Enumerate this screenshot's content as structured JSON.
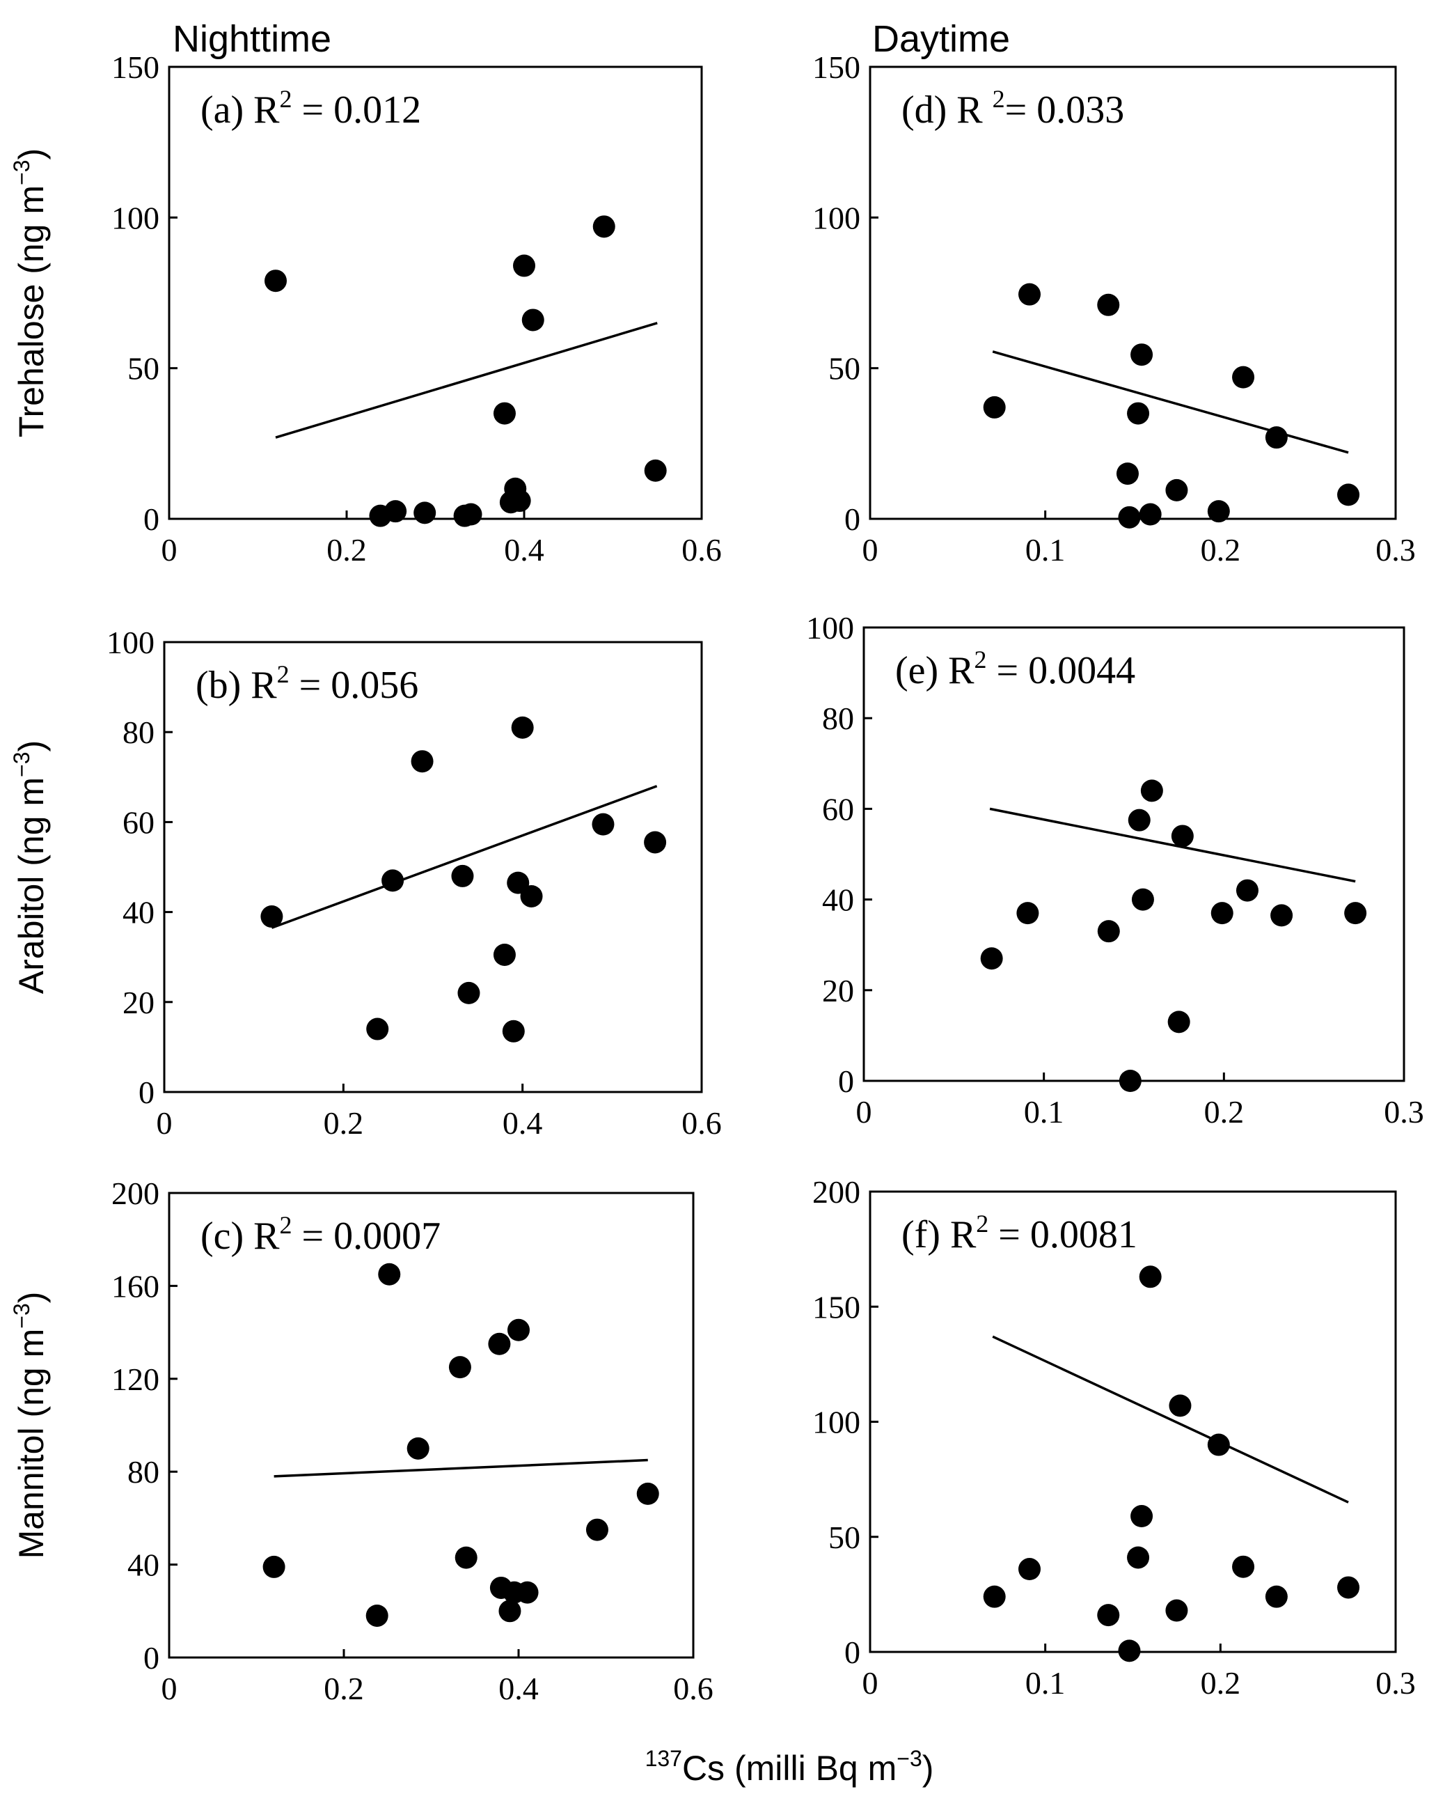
{
  "column_titles": {
    "left": "Nighttime",
    "right": "Daytime"
  },
  "shared_xlabel": {
    "sup": "137",
    "main": "Cs (milli  Bq m",
    "exp": "−3",
    "close": ")"
  },
  "chart_data": [
    {
      "id": "a",
      "type": "scatter",
      "column": "Nighttime",
      "panel_label": "(a)",
      "annotation_pre": "(a)  R",
      "annotation_exp": "2",
      "annotation_post": " = 0.012",
      "ylabel": {
        "main": "Trehalose  (ng m",
        "exp": "−3",
        "close": ")"
      },
      "xlim": [
        0,
        0.6
      ],
      "xticks": [
        0,
        0.2,
        0.4,
        0.6
      ],
      "xtick_labels": [
        "0",
        "0.2",
        "0.4",
        "0.6"
      ],
      "ylim": [
        0,
        150
      ],
      "yticks": [
        0,
        50,
        100,
        150
      ],
      "ytick_labels": [
        "0",
        "50",
        "100",
        "150"
      ],
      "points": [
        [
          0.12,
          79
        ],
        [
          0.238,
          1
        ],
        [
          0.255,
          2.5
        ],
        [
          0.288,
          2
        ],
        [
          0.333,
          1
        ],
        [
          0.34,
          1.5
        ],
        [
          0.378,
          35
        ],
        [
          0.385,
          5.5
        ],
        [
          0.39,
          10
        ],
        [
          0.395,
          6
        ],
        [
          0.4,
          84
        ],
        [
          0.41,
          66
        ],
        [
          0.49,
          97
        ],
        [
          0.548,
          16
        ]
      ],
      "trendline": [
        [
          0.12,
          27
        ],
        [
          0.55,
          65
        ]
      ]
    },
    {
      "id": "b",
      "type": "scatter",
      "column": "Nighttime",
      "panel_label": "(b)",
      "annotation_pre": "(b) R",
      "annotation_exp": "2",
      "annotation_post": " = 0.056",
      "ylabel": {
        "main": "Arabitol  (ng m",
        "exp": "−3",
        "close": ")"
      },
      "xlim": [
        0,
        0.6
      ],
      "xticks": [
        0,
        0.2,
        0.4,
        0.6
      ],
      "xtick_labels": [
        "0",
        "0.2",
        "0.4",
        "0.6"
      ],
      "ylim": [
        0,
        100
      ],
      "yticks": [
        0,
        20,
        40,
        60,
        80,
        100
      ],
      "ytick_labels": [
        "0",
        "20",
        "40",
        "60",
        "80",
        "100"
      ],
      "points": [
        [
          0.12,
          39
        ],
        [
          0.238,
          14
        ],
        [
          0.255,
          47
        ],
        [
          0.288,
          73.5
        ],
        [
          0.333,
          48
        ],
        [
          0.34,
          22
        ],
        [
          0.38,
          30.5
        ],
        [
          0.39,
          13.5
        ],
        [
          0.395,
          46.5
        ],
        [
          0.4,
          81
        ],
        [
          0.41,
          43.5
        ],
        [
          0.49,
          59.5
        ],
        [
          0.548,
          55.5
        ]
      ],
      "trendline": [
        [
          0.12,
          36.5
        ],
        [
          0.55,
          68
        ]
      ]
    },
    {
      "id": "c",
      "type": "scatter",
      "column": "Nighttime",
      "panel_label": "(c)",
      "annotation_pre": "(c) R",
      "annotation_exp": "2",
      "annotation_post": " = 0.0007",
      "ylabel": {
        "main": "Mannitol  (ng m",
        "exp": "−3",
        "close": ")"
      },
      "xlim": [
        0,
        0.6
      ],
      "xticks": [
        0,
        0.2,
        0.4,
        0.6
      ],
      "xtick_labels": [
        "0",
        "0.2",
        "0.4",
        "0.6"
      ],
      "ylim": [
        0,
        200
      ],
      "yticks": [
        0,
        40,
        80,
        120,
        160,
        200
      ],
      "ytick_labels": [
        "0",
        "40",
        "80",
        "120",
        "160",
        "200"
      ],
      "points": [
        [
          0.12,
          39
        ],
        [
          0.238,
          18
        ],
        [
          0.252,
          165
        ],
        [
          0.285,
          90
        ],
        [
          0.333,
          125
        ],
        [
          0.34,
          43
        ],
        [
          0.378,
          135
        ],
        [
          0.38,
          30
        ],
        [
          0.39,
          20
        ],
        [
          0.395,
          28
        ],
        [
          0.4,
          141
        ],
        [
          0.41,
          28
        ],
        [
          0.49,
          55
        ],
        [
          0.548,
          70.5
        ]
      ],
      "trendline": [
        [
          0.12,
          78
        ],
        [
          0.548,
          85
        ]
      ]
    },
    {
      "id": "d",
      "type": "scatter",
      "column": "Daytime",
      "panel_label": "(d)",
      "annotation_pre": "(d) R ",
      "annotation_exp": "2",
      "annotation_post": "= 0.033",
      "ylabel": null,
      "xlim": [
        0,
        0.3
      ],
      "xticks": [
        0,
        0.1,
        0.2,
        0.3
      ],
      "xtick_labels": [
        "0",
        "0.1",
        "0.2",
        "0.3"
      ],
      "ylim": [
        0,
        150
      ],
      "yticks": [
        0,
        50,
        100,
        150
      ],
      "ytick_labels": [
        "0",
        "50",
        "100",
        "150"
      ],
      "points": [
        [
          0.071,
          37
        ],
        [
          0.091,
          74.5
        ],
        [
          0.136,
          71
        ],
        [
          0.147,
          15
        ],
        [
          0.148,
          0.5
        ],
        [
          0.153,
          35
        ],
        [
          0.155,
          54.5
        ],
        [
          0.16,
          1.5
        ],
        [
          0.175,
          9.5
        ],
        [
          0.199,
          2.5
        ],
        [
          0.213,
          47
        ],
        [
          0.232,
          27
        ],
        [
          0.273,
          8
        ]
      ],
      "trendline": [
        [
          0.07,
          55.5
        ],
        [
          0.273,
          22
        ]
      ]
    },
    {
      "id": "e",
      "type": "scatter",
      "column": "Daytime",
      "panel_label": "(e)",
      "annotation_pre": "(e) R",
      "annotation_exp": "2",
      "annotation_post": " = 0.0044",
      "ylabel": null,
      "xlim": [
        0,
        0.3
      ],
      "xticks": [
        0,
        0.1,
        0.2,
        0.3
      ],
      "xtick_labels": [
        "0",
        "0.1",
        "0.2",
        "0.3"
      ],
      "ylim": [
        0,
        100
      ],
      "yticks": [
        0,
        20,
        40,
        60,
        80,
        100
      ],
      "ytick_labels": [
        "0",
        "20",
        "40",
        "60",
        "80",
        "100"
      ],
      "points": [
        [
          0.071,
          27
        ],
        [
          0.091,
          37
        ],
        [
          0.136,
          33
        ],
        [
          0.148,
          0
        ],
        [
          0.153,
          57.5
        ],
        [
          0.155,
          40
        ],
        [
          0.16,
          64
        ],
        [
          0.175,
          13
        ],
        [
          0.177,
          54
        ],
        [
          0.199,
          37
        ],
        [
          0.213,
          42
        ],
        [
          0.232,
          36.5
        ],
        [
          0.273,
          37
        ]
      ],
      "trendline": [
        [
          0.07,
          60
        ],
        [
          0.273,
          44
        ]
      ]
    },
    {
      "id": "f",
      "type": "scatter",
      "column": "Daytime",
      "panel_label": "(f)",
      "annotation_pre": "(f) R",
      "annotation_exp": "2",
      "annotation_post": " = 0.0081",
      "ylabel": null,
      "xlim": [
        0,
        0.3
      ],
      "xticks": [
        0,
        0.1,
        0.2,
        0.3
      ],
      "xtick_labels": [
        "0",
        "0.1",
        "0.2",
        "0.3"
      ],
      "ylim": [
        0,
        200
      ],
      "yticks": [
        0,
        50,
        100,
        150,
        200
      ],
      "ytick_labels": [
        "0",
        "50",
        "100",
        "150",
        "200"
      ],
      "points": [
        [
          0.071,
          24
        ],
        [
          0.091,
          36
        ],
        [
          0.136,
          16
        ],
        [
          0.148,
          0.5
        ],
        [
          0.153,
          41
        ],
        [
          0.155,
          59
        ],
        [
          0.16,
          163
        ],
        [
          0.175,
          18
        ],
        [
          0.177,
          107
        ],
        [
          0.199,
          90
        ],
        [
          0.213,
          37
        ],
        [
          0.232,
          24
        ],
        [
          0.273,
          28
        ]
      ],
      "trendline": [
        [
          0.07,
          137
        ],
        [
          0.273,
          65
        ]
      ]
    }
  ]
}
